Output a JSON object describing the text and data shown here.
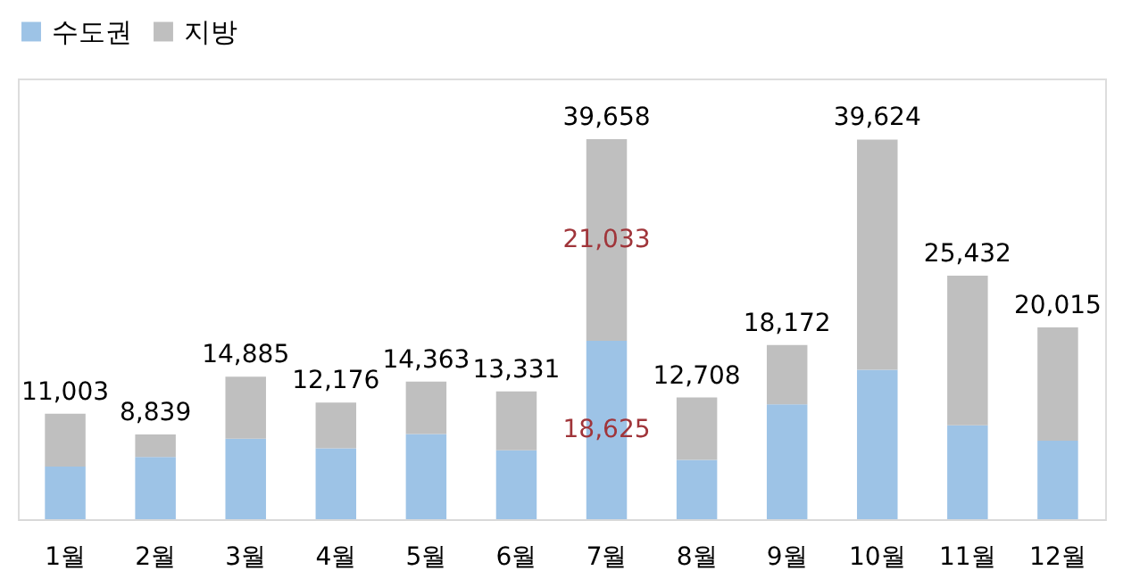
{
  "chart_data": {
    "type": "bar",
    "stacked": true,
    "categories": [
      "1월",
      "2월",
      "3월",
      "4월",
      "5월",
      "6월",
      "7월",
      "8월",
      "9월",
      "10월",
      "11월",
      "12월"
    ],
    "series": [
      {
        "name": "수도권",
        "color": "#9dc3e6",
        "values": [
          5500,
          6500,
          8400,
          7400,
          8900,
          7200,
          18625,
          6200,
          12000,
          15600,
          9800,
          8200
        ],
        "value_labels": [
          null,
          null,
          null,
          null,
          null,
          null,
          "18,625",
          null,
          null,
          null,
          null,
          null
        ]
      },
      {
        "name": "지방",
        "color": "#bfbfbf",
        "values": [
          5503,
          2339,
          6485,
          4776,
          5463,
          6131,
          21033,
          6508,
          6172,
          24024,
          15632,
          11815
        ],
        "value_labels": [
          null,
          null,
          null,
          null,
          null,
          null,
          "21,033",
          null,
          null,
          null,
          null,
          null
        ]
      }
    ],
    "totals": [
      "11,003",
      "8,839",
      "14,885",
      "12,176",
      "14,363",
      "13,331",
      "39,658",
      "12,708",
      "18,172",
      "39,624",
      "25,432",
      "20,015"
    ],
    "ylim": [
      0,
      46000
    ],
    "tick_labels": "x",
    "grid": false,
    "legend": "top"
  }
}
